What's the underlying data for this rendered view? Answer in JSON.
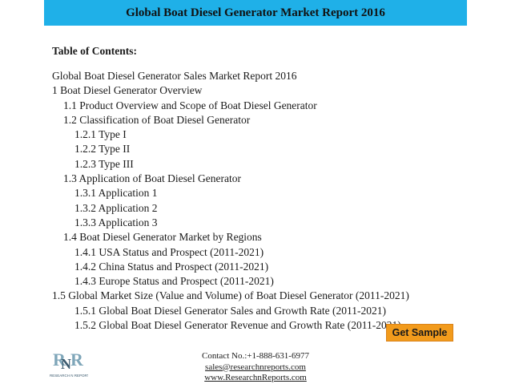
{
  "header": {
    "title": "Global Boat Diesel Generator Market Report 2016"
  },
  "toc": {
    "heading": "Table of Contents:",
    "lines": [
      {
        "text": "Global Boat Diesel Generator Sales Market Report 2016",
        "level": 0
      },
      {
        "text": "1 Boat Diesel Generator Overview",
        "level": 0
      },
      {
        "text": "1.1 Product Overview and Scope of Boat Diesel Generator",
        "level": 1
      },
      {
        "text": "1.2 Classification of Boat Diesel Generator",
        "level": 1
      },
      {
        "text": "1.2.1 Type I",
        "level": 2
      },
      {
        "text": "1.2.2 Type II",
        "level": 2
      },
      {
        "text": "1.2.3 Type III",
        "level": 2
      },
      {
        "text": "1.3 Application of Boat Diesel Generator",
        "level": 1
      },
      {
        "text": "1.3.1 Application 1",
        "level": 2
      },
      {
        "text": "1.3.2 Application 2",
        "level": 2
      },
      {
        "text": "1.3.3 Application 3",
        "level": 2
      },
      {
        "text": "1.4 Boat Diesel Generator Market by Regions",
        "level": 1
      },
      {
        "text": "1.4.1 USA Status and Prospect (2011-2021)",
        "level": 2
      },
      {
        "text": "1.4.2 China Status and Prospect (2011-2021)",
        "level": 2
      },
      {
        "text": "1.4.3 Europe Status and Prospect (2011-2021)",
        "level": 2
      },
      {
        "text": "1.5 Global Market Size (Value and Volume) of Boat Diesel Generator (2011-2021)",
        "level": 0
      },
      {
        "text": "1.5.1 Global Boat Diesel Generator Sales and Growth Rate (2011-2021)",
        "level": 2
      },
      {
        "text": "1.5.2 Global Boat Diesel Generator Revenue and Growth Rate (2011-2021)",
        "level": 2
      }
    ]
  },
  "cta": {
    "label": "Get Sample"
  },
  "logo": {
    "letters": "RNR",
    "caption": "RESEARCH N REPORTS",
    "icon": "research-n-reports-logo"
  },
  "contact": {
    "phone": "Contact No.:+1-888-631-6977",
    "email": "sales@researchnreports.com",
    "website": "www.ResearchnReports.com"
  },
  "colors": {
    "title_bar": "#1fb0e8",
    "cta_background": "#f29b1c",
    "logo_dark": "#3b5a6e",
    "logo_light": "#7fa6b9"
  }
}
